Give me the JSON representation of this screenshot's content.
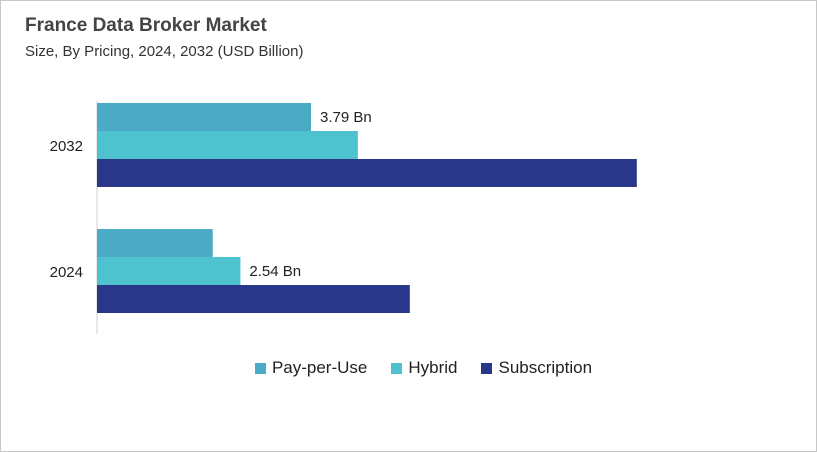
{
  "chart_data": {
    "type": "bar",
    "orientation": "horizontal",
    "title": "France Data Broker Market",
    "subtitle": "Size, By Pricing, 2024, 2032 (USD Billion)",
    "categories": [
      "2032",
      "2024"
    ],
    "series": [
      {
        "name": "Pay-per-Use",
        "color": "#4BABC4",
        "values": [
          3.79,
          2.05
        ]
      },
      {
        "name": "Hybrid",
        "color": "#4EC3CF",
        "values": [
          4.62,
          2.54
        ]
      },
      {
        "name": "Subscription",
        "color": "#29378B",
        "values": [
          9.56,
          5.54
        ]
      }
    ],
    "data_labels": [
      {
        "category": "2032",
        "series": "Pay-per-Use",
        "text": "3.79 Bn"
      },
      {
        "category": "2024",
        "series": "Hybrid",
        "text": "2.54 Bn"
      }
    ],
    "legend_position": "bottom",
    "grid": false
  }
}
